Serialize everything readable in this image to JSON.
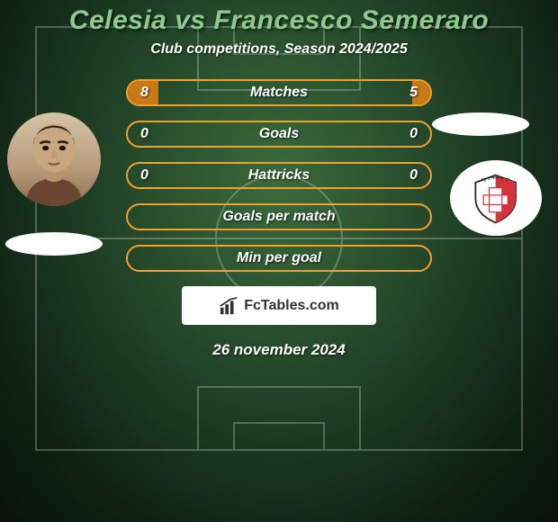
{
  "title": {
    "text": "Celesia vs Francesco Semeraro",
    "color": "#8fc98f",
    "fontsize": 30
  },
  "subtitle": {
    "text": "Club competitions, Season 2024/2025",
    "color": "#ffffff",
    "fontsize": 16
  },
  "date": {
    "text": "26 november 2024",
    "color": "#ffffff",
    "fontsize": 17
  },
  "logo": {
    "text": "FcTables.com",
    "fontsize": 16
  },
  "colors": {
    "stat_border": "#f0a030",
    "stat_fill": "#c97818",
    "stat_text": "#ffffff",
    "background_center": "#3a6a3a",
    "background_edge": "#071209"
  },
  "stats": {
    "label_fontsize": 16,
    "value_fontsize": 16,
    "rows": [
      {
        "label": "Matches",
        "left": "8",
        "right": "5",
        "left_pct": 10,
        "right_pct": 6
      },
      {
        "label": "Goals",
        "left": "0",
        "right": "0",
        "left_pct": 0,
        "right_pct": 0
      },
      {
        "label": "Hattricks",
        "left": "0",
        "right": "0",
        "left_pct": 0,
        "right_pct": 0
      },
      {
        "label": "Goals per match",
        "left": "",
        "right": "",
        "left_pct": 0,
        "right_pct": 0
      },
      {
        "label": "Min per goal",
        "left": "",
        "right": "",
        "left_pct": 0,
        "right_pct": 0
      }
    ]
  }
}
